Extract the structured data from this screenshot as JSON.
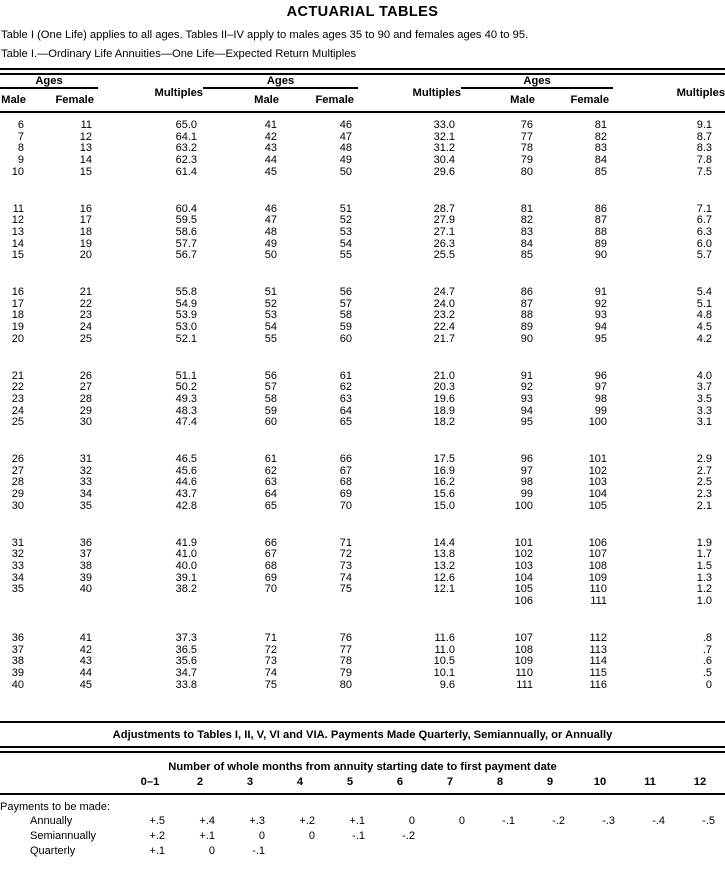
{
  "colors": {
    "ink": "#000000",
    "paper": "#ffffff"
  },
  "header": {
    "title": "ACTUARIAL TABLES",
    "intro": "Table I (One Life) applies to all ages. Tables II–IV apply to males ages 35 to 90 and females ages 40 to 95.",
    "table_caption": "Table I.—Ordinary Life Annuities—One Life—Expected Return Multiples"
  },
  "table1": {
    "column_headers": {
      "ages": "Ages",
      "male": "Male",
      "female": "Female",
      "multiples": "Multiples"
    },
    "blocks": [
      [
        [
          "6",
          "11",
          "65.0",
          "41",
          "46",
          "33.0",
          "76",
          "81",
          "9.1"
        ],
        [
          "7",
          "12",
          "64.1",
          "42",
          "47",
          "32.1",
          "77",
          "82",
          "8.7"
        ],
        [
          "8",
          "13",
          "63.2",
          "43",
          "48",
          "31.2",
          "78",
          "83",
          "8.3"
        ],
        [
          "9",
          "14",
          "62.3",
          "44",
          "49",
          "30.4",
          "79",
          "84",
          "7.8"
        ],
        [
          "10",
          "15",
          "61.4",
          "45",
          "50",
          "29.6",
          "80",
          "85",
          "7.5"
        ]
      ],
      [
        [
          "11",
          "16",
          "60.4",
          "46",
          "51",
          "28.7",
          "81",
          "86",
          "7.1"
        ],
        [
          "12",
          "17",
          "59.5",
          "47",
          "52",
          "27.9",
          "82",
          "87",
          "6.7"
        ],
        [
          "13",
          "18",
          "58.6",
          "48",
          "53",
          "27.1",
          "83",
          "88",
          "6.3"
        ],
        [
          "14",
          "19",
          "57.7",
          "49",
          "54",
          "26.3",
          "84",
          "89",
          "6.0"
        ],
        [
          "15",
          "20",
          "56.7",
          "50",
          "55",
          "25.5",
          "85",
          "90",
          "5.7"
        ]
      ],
      [
        [
          "16",
          "21",
          "55.8",
          "51",
          "56",
          "24.7",
          "86",
          "91",
          "5.4"
        ],
        [
          "17",
          "22",
          "54.9",
          "52",
          "57",
          "24.0",
          "87",
          "92",
          "5.1"
        ],
        [
          "18",
          "23",
          "53.9",
          "53",
          "58",
          "23.2",
          "88",
          "93",
          "4.8"
        ],
        [
          "19",
          "24",
          "53.0",
          "54",
          "59",
          "22.4",
          "89",
          "94",
          "4.5"
        ],
        [
          "20",
          "25",
          "52.1",
          "55",
          "60",
          "21.7",
          "90",
          "95",
          "4.2"
        ]
      ],
      [
        [
          "21",
          "26",
          "51.1",
          "56",
          "61",
          "21.0",
          "91",
          "96",
          "4.0"
        ],
        [
          "22",
          "27",
          "50.2",
          "57",
          "62",
          "20.3",
          "92",
          "97",
          "3.7"
        ],
        [
          "23",
          "28",
          "49.3",
          "58",
          "63",
          "19.6",
          "93",
          "98",
          "3.5"
        ],
        [
          "24",
          "29",
          "48.3",
          "59",
          "64",
          "18.9",
          "94",
          "99",
          "3.3"
        ],
        [
          "25",
          "30",
          "47.4",
          "60",
          "65",
          "18.2",
          "95",
          "100",
          "3.1"
        ]
      ],
      [
        [
          "26",
          "31",
          "46.5",
          "61",
          "66",
          "17.5",
          "96",
          "101",
          "2.9"
        ],
        [
          "27",
          "32",
          "45.6",
          "62",
          "67",
          "16.9",
          "97",
          "102",
          "2.7"
        ],
        [
          "28",
          "33",
          "44.6",
          "63",
          "68",
          "16.2",
          "98",
          "103",
          "2.5"
        ],
        [
          "29",
          "34",
          "43.7",
          "64",
          "69",
          "15.6",
          "99",
          "104",
          "2.3"
        ],
        [
          "30",
          "35",
          "42.8",
          "65",
          "70",
          "15.0",
          "100",
          "105",
          "2.1"
        ]
      ],
      [
        [
          "31",
          "36",
          "41.9",
          "66",
          "71",
          "14.4",
          "101",
          "106",
          "1.9"
        ],
        [
          "32",
          "37",
          "41.0",
          "67",
          "72",
          "13.8",
          "102",
          "107",
          "1.7"
        ],
        [
          "33",
          "38",
          "40.0",
          "68",
          "73",
          "13.2",
          "103",
          "108",
          "1.5"
        ],
        [
          "34",
          "39",
          "39.1",
          "69",
          "74",
          "12.6",
          "104",
          "109",
          "1.3"
        ],
        [
          "35",
          "40",
          "38.2",
          "70",
          "75",
          "12.1",
          "105",
          "110",
          "1.2"
        ],
        [
          "",
          "",
          "",
          "",
          "",
          "",
          "106",
          "111",
          "1.0"
        ]
      ],
      [
        [
          "36",
          "41",
          "37.3",
          "71",
          "76",
          "11.6",
          "107",
          "112",
          ".8"
        ],
        [
          "37",
          "42",
          "36.5",
          "72",
          "77",
          "11.0",
          "108",
          "113",
          ".7"
        ],
        [
          "38",
          "43",
          "35.6",
          "73",
          "78",
          "10.5",
          "109",
          "114",
          ".6"
        ],
        [
          "39",
          "44",
          "34.7",
          "74",
          "79",
          "10.1",
          "110",
          "115",
          ".5"
        ],
        [
          "40",
          "45",
          "33.8",
          "75",
          "80",
          "9.6",
          "111",
          "116",
          "0"
        ]
      ]
    ]
  },
  "adjustments": {
    "title": "Adjustments to Tables I, II, V, VI and VIA. Payments Made Quarterly, Semiannually, or Annually",
    "subtitle": "Number of whole months from annuity starting date to first payment date",
    "months": [
      "0–1",
      "2",
      "3",
      "4",
      "5",
      "6",
      "7",
      "8",
      "9",
      "10",
      "11",
      "12"
    ],
    "note": "Payments to be made:",
    "rows": [
      {
        "label": "Annually",
        "values": [
          "+.5",
          "+.4",
          "+.3",
          "+.2",
          "+.1",
          "0",
          "0",
          "-.1",
          "-.2",
          "-.3",
          "-.4",
          "-.5"
        ]
      },
      {
        "label": "Semiannually",
        "values": [
          "+.2",
          "+.1",
          "0",
          "0",
          "-.1",
          "-.2",
          "",
          "",
          "",
          "",
          "",
          ""
        ]
      },
      {
        "label": "Quarterly",
        "values": [
          "+.1",
          "0",
          "-.1",
          "",
          "",
          "",
          "",
          "",
          "",
          "",
          "",
          ""
        ]
      }
    ]
  }
}
